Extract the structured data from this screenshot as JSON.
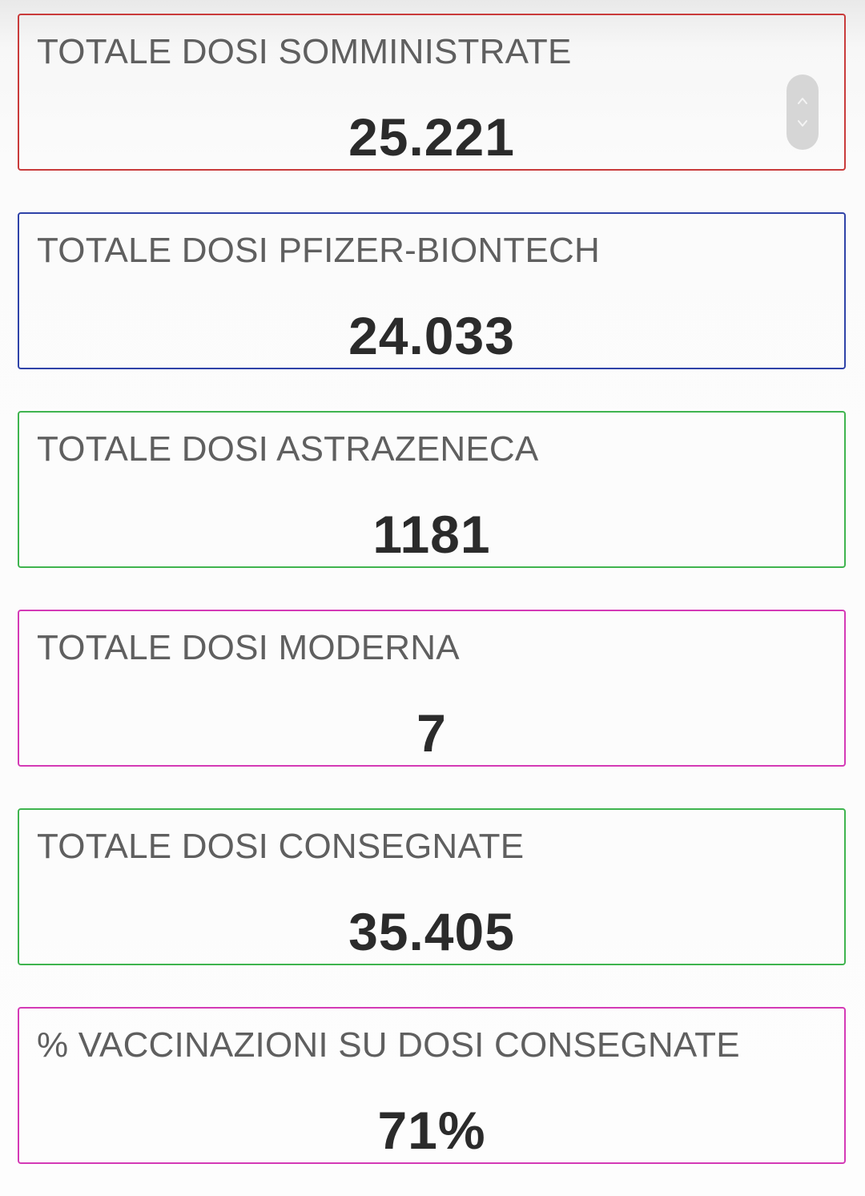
{
  "cards": [
    {
      "label": "TOTALE DOSI SOMMINISTRATE",
      "value": "25.221",
      "border_color": "#c93b3b"
    },
    {
      "label": "TOTALE DOSI PFIZER-BIONTECH",
      "value": "24.033",
      "border_color": "#2f43a8"
    },
    {
      "label": "TOTALE DOSI ASTRAZENECA",
      "value": "1181",
      "border_color": "#3fb44f"
    },
    {
      "label": "TOTALE DOSI MODERNA",
      "value": "7",
      "border_color": "#d43ab6"
    },
    {
      "label": "TOTALE DOSI CONSEGNATE",
      "value": "35.405",
      "border_color": "#3fb44f"
    },
    {
      "label": "% VACCINAZIONI SU DOSI CONSEGNATE",
      "value": "71%",
      "border_color": "#d43ab6"
    }
  ],
  "scroll_control": {
    "up_icon": "chevron-up-icon",
    "down_icon": "chevron-down-icon"
  }
}
